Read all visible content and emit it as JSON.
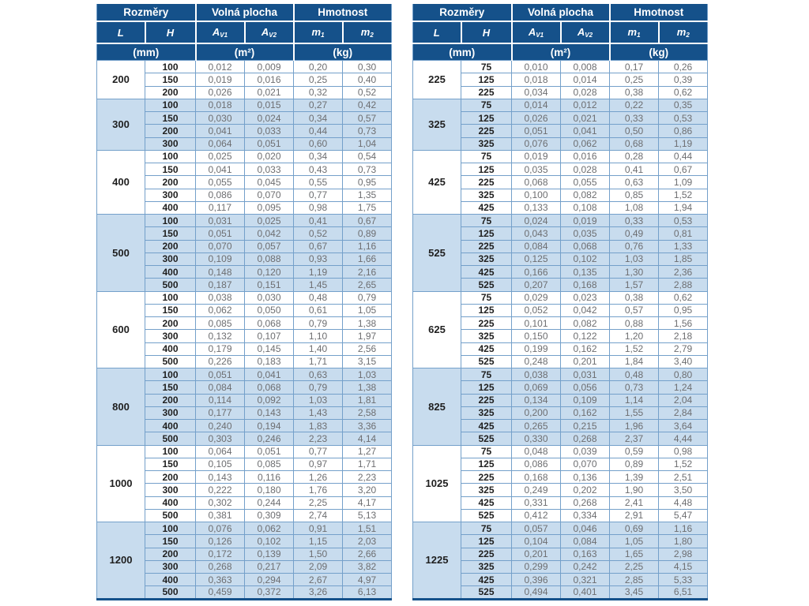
{
  "colors": {
    "header_bg": "#15518a",
    "shaded_row_bg": "#c8dcee",
    "grid_line": "#74a0ca",
    "value_text": "#6d6e71",
    "dark_text": "#1f1f1f"
  },
  "header": {
    "rozmery": "Rozměry",
    "volna_plocha": "Volná plocha",
    "hmotnost": "Hmotnost",
    "sym_L": "L",
    "sym_H": "H",
    "sym_A": "A",
    "sub_v1": "V1",
    "sub_v2": "V2",
    "sym_m": "m",
    "sub_1": "1",
    "sub_2": "2",
    "unit_mm": "(mm)",
    "unit_m2": "(m²)",
    "unit_kg": "(kg)"
  },
  "tables": [
    {
      "groups": [
        {
          "L": "200",
          "rows": [
            [
              "100",
              "0,012",
              "0,009",
              "0,20",
              "0,30"
            ],
            [
              "150",
              "0,019",
              "0,016",
              "0,25",
              "0,40"
            ],
            [
              "200",
              "0,026",
              "0,021",
              "0,32",
              "0,52"
            ]
          ]
        },
        {
          "L": "300",
          "rows": [
            [
              "100",
              "0,018",
              "0,015",
              "0,27",
              "0,42"
            ],
            [
              "150",
              "0,030",
              "0,024",
              "0,34",
              "0,57"
            ],
            [
              "200",
              "0,041",
              "0,033",
              "0,44",
              "0,73"
            ],
            [
              "300",
              "0,064",
              "0,051",
              "0,60",
              "1,04"
            ]
          ]
        },
        {
          "L": "400",
          "rows": [
            [
              "100",
              "0,025",
              "0,020",
              "0,34",
              "0,54"
            ],
            [
              "150",
              "0,041",
              "0,033",
              "0,43",
              "0,73"
            ],
            [
              "200",
              "0,055",
              "0,045",
              "0,55",
              "0,95"
            ],
            [
              "300",
              "0,086",
              "0,070",
              "0,77",
              "1,35"
            ],
            [
              "400",
              "0,117",
              "0,095",
              "0,98",
              "1,75"
            ]
          ]
        },
        {
          "L": "500",
          "rows": [
            [
              "100",
              "0,031",
              "0,025",
              "0,41",
              "0,67"
            ],
            [
              "150",
              "0,051",
              "0,042",
              "0,52",
              "0,89"
            ],
            [
              "200",
              "0,070",
              "0,057",
              "0,67",
              "1,16"
            ],
            [
              "300",
              "0,109",
              "0,088",
              "0,93",
              "1,66"
            ],
            [
              "400",
              "0,148",
              "0,120",
              "1,19",
              "2,16"
            ],
            [
              "500",
              "0,187",
              "0,151",
              "1,45",
              "2,65"
            ]
          ]
        },
        {
          "L": "600",
          "rows": [
            [
              "100",
              "0,038",
              "0,030",
              "0,48",
              "0,79"
            ],
            [
              "150",
              "0,062",
              "0,050",
              "0,61",
              "1,05"
            ],
            [
              "200",
              "0,085",
              "0,068",
              "0,79",
              "1,38"
            ],
            [
              "300",
              "0,132",
              "0,107",
              "1,10",
              "1,97"
            ],
            [
              "400",
              "0,179",
              "0,145",
              "1,40",
              "2,56"
            ],
            [
              "500",
              "0,226",
              "0,183",
              "1,71",
              "3,15"
            ]
          ]
        },
        {
          "L": "800",
          "rows": [
            [
              "100",
              "0,051",
              "0,041",
              "0,63",
              "1,03"
            ],
            [
              "150",
              "0,084",
              "0,068",
              "0,79",
              "1,38"
            ],
            [
              "200",
              "0,114",
              "0,092",
              "1,03",
              "1,81"
            ],
            [
              "300",
              "0,177",
              "0,143",
              "1,43",
              "2,58"
            ],
            [
              "400",
              "0,240",
              "0,194",
              "1,83",
              "3,36"
            ],
            [
              "500",
              "0,303",
              "0,246",
              "2,23",
              "4,14"
            ]
          ]
        },
        {
          "L": "1000",
          "rows": [
            [
              "100",
              "0,064",
              "0,051",
              "0,77",
              "1,27"
            ],
            [
              "150",
              "0,105",
              "0,085",
              "0,97",
              "1,71"
            ],
            [
              "200",
              "0,143",
              "0,116",
              "1,26",
              "2,23"
            ],
            [
              "300",
              "0,222",
              "0,180",
              "1,76",
              "3,20"
            ],
            [
              "400",
              "0,302",
              "0,244",
              "2,25",
              "4,17"
            ],
            [
              "500",
              "0,381",
              "0,309",
              "2,74",
              "5,13"
            ]
          ]
        },
        {
          "L": "1200",
          "rows": [
            [
              "100",
              "0,076",
              "0,062",
              "0,91",
              "1,51"
            ],
            [
              "150",
              "0,126",
              "0,102",
              "1,15",
              "2,03"
            ],
            [
              "200",
              "0,172",
              "0,139",
              "1,50",
              "2,66"
            ],
            [
              "300",
              "0,268",
              "0,217",
              "2,09",
              "3,82"
            ],
            [
              "400",
              "0,363",
              "0,294",
              "2,67",
              "4,97"
            ],
            [
              "500",
              "0,459",
              "0,372",
              "3,26",
              "6,13"
            ]
          ]
        }
      ]
    },
    {
      "groups": [
        {
          "L": "225",
          "rows": [
            [
              "75",
              "0,010",
              "0,008",
              "0,17",
              "0,26"
            ],
            [
              "125",
              "0,018",
              "0,014",
              "0,25",
              "0,39"
            ],
            [
              "225",
              "0,034",
              "0,028",
              "0,38",
              "0,62"
            ]
          ]
        },
        {
          "L": "325",
          "rows": [
            [
              "75",
              "0,014",
              "0,012",
              "0,22",
              "0,35"
            ],
            [
              "125",
              "0,026",
              "0,021",
              "0,33",
              "0,53"
            ],
            [
              "225",
              "0,051",
              "0,041",
              "0,50",
              "0,86"
            ],
            [
              "325",
              "0,076",
              "0,062",
              "0,68",
              "1,19"
            ]
          ]
        },
        {
          "L": "425",
          "rows": [
            [
              "75",
              "0,019",
              "0,016",
              "0,28",
              "0,44"
            ],
            [
              "125",
              "0,035",
              "0,028",
              "0,41",
              "0,67"
            ],
            [
              "225",
              "0,068",
              "0,055",
              "0,63",
              "1,09"
            ],
            [
              "325",
              "0,100",
              "0,082",
              "0,85",
              "1,52"
            ],
            [
              "425",
              "0,133",
              "0,108",
              "1,08",
              "1,94"
            ]
          ]
        },
        {
          "L": "525",
          "rows": [
            [
              "75",
              "0,024",
              "0,019",
              "0,33",
              "0,53"
            ],
            [
              "125",
              "0,043",
              "0,035",
              "0,49",
              "0,81"
            ],
            [
              "225",
              "0,084",
              "0,068",
              "0,76",
              "1,33"
            ],
            [
              "325",
              "0,125",
              "0,102",
              "1,03",
              "1,85"
            ],
            [
              "425",
              "0,166",
              "0,135",
              "1,30",
              "2,36"
            ],
            [
              "525",
              "0,207",
              "0,168",
              "1,57",
              "2,88"
            ]
          ]
        },
        {
          "L": "625",
          "rows": [
            [
              "75",
              "0,029",
              "0,023",
              "0,38",
              "0,62"
            ],
            [
              "125",
              "0,052",
              "0,042",
              "0,57",
              "0,95"
            ],
            [
              "225",
              "0,101",
              "0,082",
              "0,88",
              "1,56"
            ],
            [
              "325",
              "0,150",
              "0,122",
              "1,20",
              "2,18"
            ],
            [
              "425",
              "0,199",
              "0,162",
              "1,52",
              "2,79"
            ],
            [
              "525",
              "0,248",
              "0,201",
              "1,84",
              "3,40"
            ]
          ]
        },
        {
          "L": "825",
          "rows": [
            [
              "75",
              "0,038",
              "0,031",
              "0,48",
              "0,80"
            ],
            [
              "125",
              "0,069",
              "0,056",
              "0,73",
              "1,24"
            ],
            [
              "225",
              "0,134",
              "0,109",
              "1,14",
              "2,04"
            ],
            [
              "325",
              "0,200",
              "0,162",
              "1,55",
              "2,84"
            ],
            [
              "425",
              "0,265",
              "0,215",
              "1,96",
              "3,64"
            ],
            [
              "525",
              "0,330",
              "0,268",
              "2,37",
              "4,44"
            ]
          ]
        },
        {
          "L": "1025",
          "rows": [
            [
              "75",
              "0,048",
              "0,039",
              "0,59",
              "0,98"
            ],
            [
              "125",
              "0,086",
              "0,070",
              "0,89",
              "1,52"
            ],
            [
              "225",
              "0,168",
              "0,136",
              "1,39",
              "2,51"
            ],
            [
              "325",
              "0,249",
              "0,202",
              "1,90",
              "3,50"
            ],
            [
              "425",
              "0,331",
              "0,268",
              "2,41",
              "4,48"
            ],
            [
              "525",
              "0,412",
              "0,334",
              "2,91",
              "5,47"
            ]
          ]
        },
        {
          "L": "1225",
          "rows": [
            [
              "75",
              "0,057",
              "0,046",
              "0,69",
              "1,16"
            ],
            [
              "125",
              "0,104",
              "0,084",
              "1,05",
              "1,80"
            ],
            [
              "225",
              "0,201",
              "0,163",
              "1,65",
              "2,98"
            ],
            [
              "325",
              "0,299",
              "0,242",
              "2,25",
              "4,15"
            ],
            [
              "425",
              "0,396",
              "0,321",
              "2,85",
              "5,33"
            ],
            [
              "525",
              "0,494",
              "0,401",
              "3,45",
              "6,51"
            ]
          ]
        }
      ]
    }
  ]
}
